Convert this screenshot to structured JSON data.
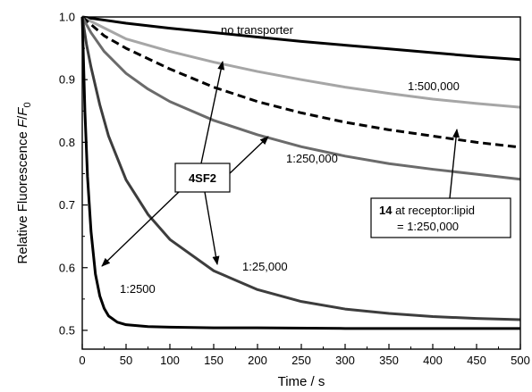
{
  "chart_data": {
    "type": "line",
    "xlabel": "Time / s",
    "ylabel_parts": [
      "Relative Fluorescence ",
      "F",
      "/",
      "F",
      "0"
    ],
    "xlim": [
      0,
      500
    ],
    "ylim": [
      0.47,
      1.0
    ],
    "xticks": [
      0,
      50,
      100,
      150,
      200,
      250,
      300,
      350,
      400,
      450,
      500
    ],
    "yticks": [
      0.5,
      0.6,
      0.7,
      0.8,
      0.9,
      1.0
    ],
    "ytick_labels": [
      "0.5",
      "0.6",
      "0.7",
      "0.8",
      "0.9",
      "1.0"
    ],
    "grid": false,
    "series": [
      {
        "name": "no transporter",
        "color": "#000000",
        "dash": "",
        "x": [
          0,
          50,
          100,
          150,
          200,
          250,
          300,
          350,
          400,
          450,
          500
        ],
        "y": [
          1.0,
          0.99,
          0.982,
          0.975,
          0.968,
          0.961,
          0.955,
          0.949,
          0.943,
          0.937,
          0.932
        ]
      },
      {
        "name": "1:500,000",
        "color": "#a6a6a6",
        "dash": "",
        "x": [
          0,
          50,
          100,
          150,
          200,
          250,
          300,
          350,
          400,
          450,
          500
        ],
        "y": [
          1.0,
          0.965,
          0.945,
          0.928,
          0.913,
          0.9,
          0.888,
          0.878,
          0.869,
          0.862,
          0.856
        ]
      },
      {
        "name": "14 at receptor:lipid = 1:250,000",
        "color": "#000000",
        "dash": "9,5",
        "x": [
          0,
          25,
          50,
          100,
          150,
          200,
          250,
          300,
          350,
          400,
          450,
          500
        ],
        "y": [
          1.0,
          0.97,
          0.95,
          0.917,
          0.888,
          0.865,
          0.847,
          0.832,
          0.82,
          0.81,
          0.8,
          0.792
        ]
      },
      {
        "name": "1:250,000",
        "color": "#6b6b6b",
        "dash": "",
        "x": [
          0,
          10,
          25,
          50,
          75,
          100,
          150,
          200,
          250,
          300,
          350,
          400,
          450,
          500
        ],
        "y": [
          1.0,
          0.975,
          0.945,
          0.91,
          0.885,
          0.865,
          0.835,
          0.812,
          0.793,
          0.778,
          0.766,
          0.757,
          0.749,
          0.741
        ]
      },
      {
        "name": "1:25,000",
        "color": "#3d3d3d",
        "dash": "",
        "x": [
          0,
          5,
          10,
          20,
          30,
          50,
          75,
          100,
          150,
          200,
          250,
          300,
          350,
          400,
          450,
          500
        ],
        "y": [
          1.0,
          0.955,
          0.92,
          0.86,
          0.81,
          0.74,
          0.685,
          0.645,
          0.595,
          0.565,
          0.546,
          0.534,
          0.527,
          0.522,
          0.519,
          0.517
        ]
      },
      {
        "name": "1:2500",
        "color": "#000000",
        "dash": "",
        "x": [
          0,
          3,
          6,
          10,
          15,
          20,
          25,
          30,
          40,
          50,
          75,
          100,
          150,
          200,
          300,
          400,
          500
        ],
        "y": [
          1.0,
          0.85,
          0.745,
          0.658,
          0.59,
          0.555,
          0.535,
          0.523,
          0.513,
          0.509,
          0.506,
          0.505,
          0.504,
          0.504,
          0.503,
          0.503,
          0.503
        ]
      }
    ],
    "annotations": {
      "no_transporter": "no transporter",
      "r500k": "1:500,000",
      "r250k": "1:250,000",
      "r25k": "1:25,000",
      "r2500": "1:2500",
      "center_box": "4SF2",
      "compound_bold": "14",
      "compound_line1": " at receptor:lipid",
      "compound_line2": "= 1:250,000"
    }
  }
}
